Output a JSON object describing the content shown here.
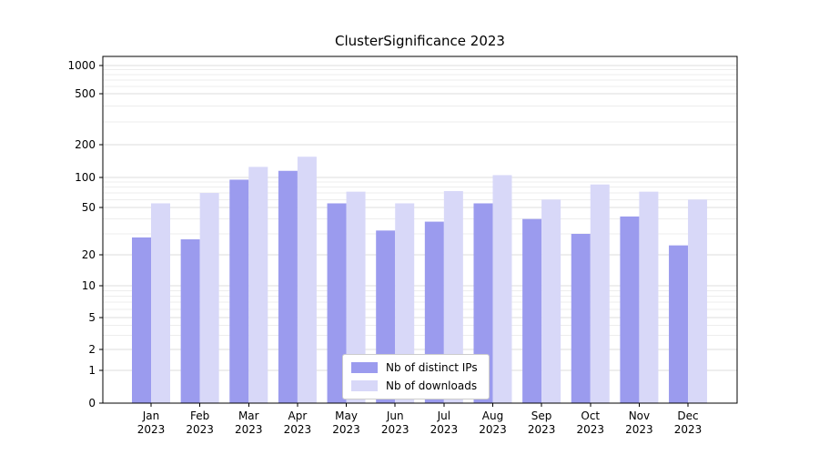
{
  "chart_data": {
    "type": "bar",
    "title": "ClusterSignificance 2023",
    "yscale": "symlog",
    "grid": true,
    "legend_position": "lower center",
    "ylim": [
      0,
      1000
    ],
    "yticks": [
      0,
      1,
      2,
      5,
      10,
      20,
      50,
      100,
      200,
      500,
      1000
    ],
    "xlabel": "",
    "ylabel": "",
    "categories": [
      "Jan 2023",
      "Feb 2023",
      "Mar 2023",
      "Apr 2023",
      "May 2023",
      "Jun 2023",
      "Jul 2023",
      "Aug 2023",
      "Sep 2023",
      "Oct 2023",
      "Nov 2023",
      "Dec 2023"
    ],
    "series": [
      {
        "name": "Nb of distinct IPs",
        "color": "#9b9bee",
        "values": [
          28,
          27,
          95,
          115,
          55,
          32,
          38,
          55,
          40,
          30,
          42,
          24
        ]
      },
      {
        "name": "Nb of downloads",
        "color": "#d8d8f8",
        "values": [
          55,
          70,
          125,
          155,
          72,
          55,
          73,
          105,
          60,
          85,
          72,
          60
        ]
      }
    ],
    "colors": {
      "grid_major": "#dcdcdc",
      "grid_minor": "#ededed",
      "axis": "#000000",
      "legend_border": "#cccccc"
    }
  }
}
